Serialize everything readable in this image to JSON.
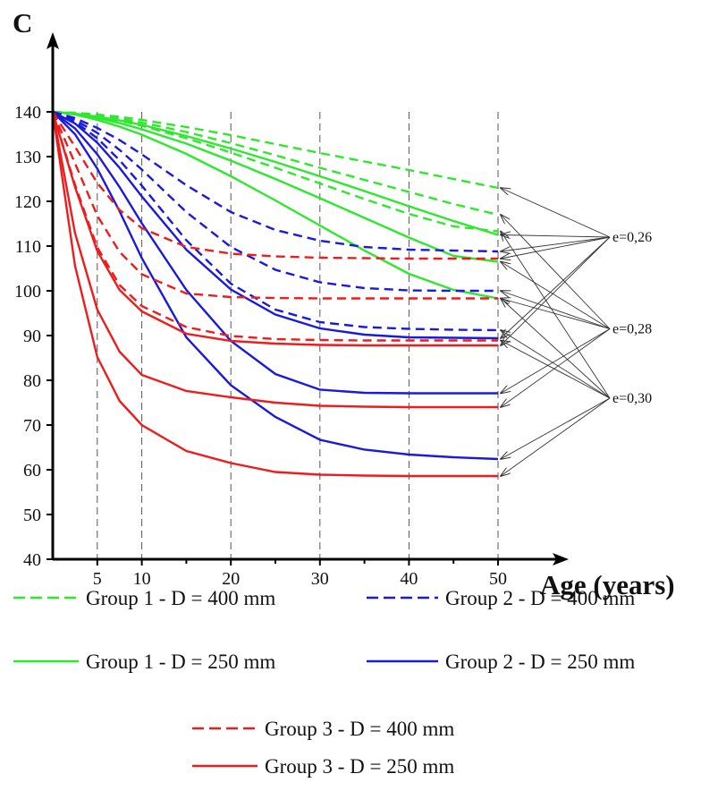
{
  "chart_data": {
    "type": "line",
    "title": "",
    "ylabel": "C",
    "xlabel": "Age (years)",
    "xlim": [
      0,
      50
    ],
    "ylim": [
      40,
      140
    ],
    "x_ticks": [
      5,
      10,
      20,
      30,
      40,
      50
    ],
    "x_minor_ticks": [
      15,
      25,
      35,
      45
    ],
    "y_ticks": [
      40,
      50,
      60,
      70,
      80,
      90,
      100,
      110,
      120,
      130,
      140
    ],
    "vertical_dashed_gridlines_at": [
      5,
      10,
      20,
      30,
      40,
      50
    ],
    "grid": false,
    "legend_placement": "bottom",
    "colors": {
      "group1": "#2ee82e",
      "group2": "#1a1adc",
      "group3": "#ee1c1c",
      "annotation": "#333333"
    },
    "x": [
      0,
      2.5,
      5,
      7.5,
      10,
      15,
      20,
      25,
      30,
      35,
      40,
      45,
      50
    ],
    "series": [
      {
        "name": "Group 1 - D = 400 mm",
        "group": "group1",
        "style": "dashed",
        "curves": [
          {
            "e": "e=0,26",
            "y": [
              140,
              139.8,
              139.4,
              138.9,
              138.2,
              136.6,
              134.8,
              132.8,
              130.8,
              128.9,
              127,
              125,
              123
            ]
          },
          {
            "e": "e=0,28",
            "y": [
              140,
              139.7,
              139.2,
              138.5,
              137.6,
              135.5,
              133,
              130.3,
              127.5,
              124.8,
              122.1,
              119.4,
              117
            ]
          },
          {
            "e": "e=0,30",
            "y": [
              140,
              139.6,
              138.9,
              138,
              136.9,
              134.1,
              130.9,
              127.5,
              124,
              120.5,
              117.2,
              114.4,
              113.3
            ]
          }
        ]
      },
      {
        "name": "Group 1 - D = 250 mm",
        "group": "group1",
        "style": "solid",
        "curves": [
          {
            "e": "e=0,26",
            "y": [
              140,
              139.6,
              138.9,
              138.1,
              137.1,
              134.6,
              131.8,
              128.8,
              125.6,
              122.3,
              118.9,
              115.6,
              112.5
            ]
          },
          {
            "e": "e=0,28",
            "y": [
              140,
              139.5,
              138.6,
              137.5,
              136.1,
              132.9,
              129.1,
              125,
              120.7,
              116.3,
              111.9,
              107.8,
              106.5
            ]
          },
          {
            "e": "e=0,30",
            "y": [
              140,
              139.4,
              138.2,
              136.7,
              134.9,
              130.6,
              125.6,
              120.2,
              114.6,
              109,
              103.8,
              100.2,
              98.3
            ]
          }
        ]
      },
      {
        "name": "Group 2 - D = 400 mm",
        "group": "group2",
        "style": "dashed",
        "curves": [
          {
            "e": "e=0,26",
            "y": [
              140,
              138.6,
              136.4,
              133.7,
              130.5,
              123.6,
              117.6,
              113.6,
              111.2,
              109.8,
              109.2,
              109,
              108.8
            ]
          },
          {
            "e": "e=0,28",
            "y": [
              140,
              138.2,
              135.3,
              131.5,
              127.1,
              117.6,
              109.8,
              104.7,
              101.9,
              100.6,
              100.1,
              100,
              100
            ]
          },
          {
            "e": "e=0,30",
            "y": [
              140,
              137.8,
              134.1,
              129.2,
              123.5,
              111.3,
              101.6,
              95.8,
              93,
              91.9,
              91.5,
              91.3,
              91.2
            ]
          }
        ]
      },
      {
        "name": "Group 2 - D = 250 mm",
        "group": "group2",
        "style": "solid",
        "curves": [
          {
            "e": "e=0,26",
            "y": [
              140,
              137.4,
              133.1,
              127.5,
              121.1,
              109.2,
              100.3,
              94.7,
              91.6,
              90.2,
              89.6,
              89.5,
              89.4
            ]
          },
          {
            "e": "e=0,28",
            "y": [
              140,
              136.3,
              130.5,
              123.2,
              115.1,
              100.2,
              88.8,
              81.4,
              77.9,
              77.2,
              77.1,
              77.1,
              77.1
            ]
          },
          {
            "e": "e=0,30",
            "y": [
              140,
              135,
              127.3,
              117.8,
              107.3,
              89.6,
              78.9,
              71.8,
              66.7,
              64.5,
              63.4,
              62.8,
              62.4
            ]
          }
        ]
      },
      {
        "name": "Group 3 - D = 400 mm",
        "group": "group3",
        "style": "dashed",
        "curves": [
          {
            "e": "e=0,26",
            "y": [
              140,
              132.2,
              124.1,
              118.1,
              114,
              109.8,
              108.3,
              107.7,
              107.4,
              107.3,
              107.2,
              107.2,
              107.2
            ]
          },
          {
            "e": "e=0,28",
            "y": [
              140,
              128.5,
              116.8,
              108.7,
              103.7,
              99.4,
              98.6,
              98.4,
              98.3,
              98.3,
              98.3,
              98.3,
              98.3
            ]
          },
          {
            "e": "e=0,30",
            "y": [
              140,
              123.7,
              109.7,
              101.3,
              96.6,
              91.9,
              89.9,
              89.2,
              89,
              88.9,
              88.9,
              88.9,
              88.9
            ]
          }
        ]
      },
      {
        "name": "Group 3 - D = 250 mm",
        "group": "group3",
        "style": "solid",
        "curves": [
          {
            "e": "e=0,26",
            "y": [
              140,
              123.2,
              108.9,
              100.2,
              95.4,
              90.4,
              88.8,
              88.2,
              87.9,
              87.8,
              87.8,
              87.8,
              87.8
            ]
          },
          {
            "e": "e=0,28",
            "y": [
              140,
              112.9,
              95.8,
              86.4,
              81.2,
              77.6,
              76.2,
              75,
              74.3,
              74.1,
              74,
              74,
              74
            ]
          },
          {
            "e": "e=0,30",
            "y": [
              140,
              105.6,
              85.2,
              75.4,
              70,
              64.2,
              61.5,
              59.5,
              58.9,
              58.7,
              58.6,
              58.6,
              58.6
            ]
          }
        ]
      }
    ],
    "annotations": [
      {
        "label": "e=0,26",
        "anchor_y": 112
      },
      {
        "label": "e=0,28",
        "anchor_y": 91.5
      },
      {
        "label": "e=0,30",
        "anchor_y": 76
      }
    ]
  }
}
